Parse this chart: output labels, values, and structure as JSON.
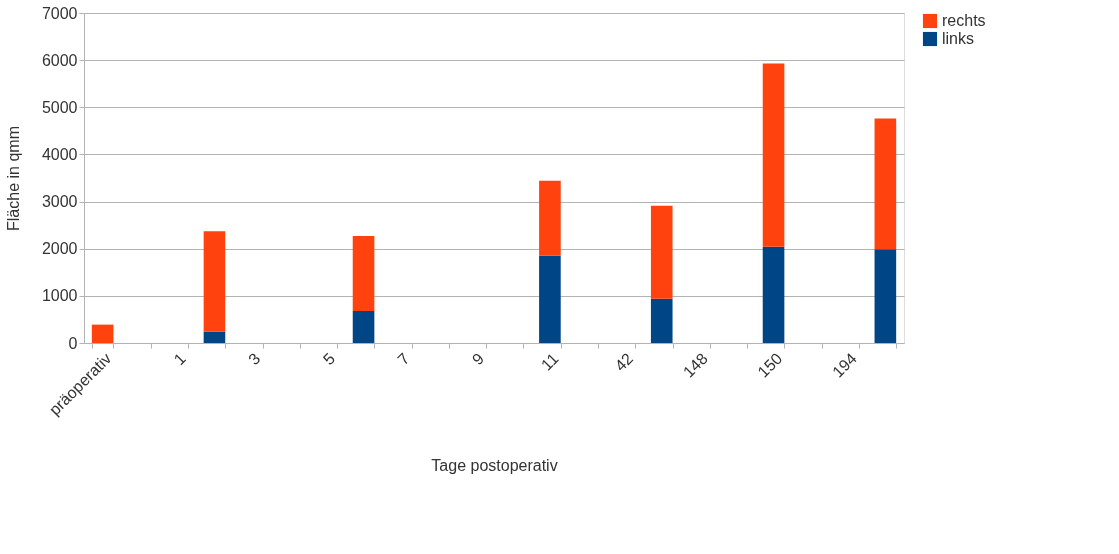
{
  "chart_data": {
    "type": "bar",
    "stacked": true,
    "xlabel": "Tage postoperativ",
    "ylabel": "Fläche in qmm",
    "categories": [
      "präoperativ",
      null,
      "1",
      null,
      "3",
      null,
      "5",
      null,
      "7",
      null,
      "9",
      null,
      "11",
      null,
      "42",
      null,
      "148",
      null,
      "150",
      null,
      "194",
      null
    ],
    "series": [
      {
        "name": "links",
        "color": "#004586",
        "values": [
          0,
          null,
          null,
          240,
          null,
          null,
          null,
          680,
          null,
          null,
          null,
          null,
          1850,
          null,
          null,
          940,
          null,
          null,
          2040,
          null,
          null,
          1990
        ]
      },
      {
        "name": "rechts",
        "color": "#ff420e",
        "values": [
          390,
          null,
          null,
          2130,
          null,
          null,
          null,
          1590,
          null,
          null,
          null,
          null,
          1590,
          null,
          null,
          1970,
          null,
          null,
          3890,
          null,
          null,
          2770
        ]
      }
    ],
    "ylim": [
      0,
      7000
    ],
    "yticks": [
      0,
      1000,
      2000,
      3000,
      4000,
      5000,
      6000,
      7000
    ],
    "grid": "y",
    "legend": "right"
  }
}
